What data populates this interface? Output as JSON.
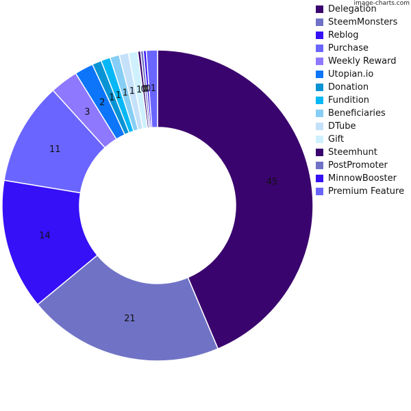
{
  "watermark": "image-charts.com",
  "colors": [
    "#3a046e",
    "#7073c5",
    "#3610f6",
    "#6a65ff",
    "#8e78fe",
    "#0c75f9",
    "#0893d4",
    "#06b7f6",
    "#86cef5",
    "#c5e1f9",
    "#cff1ff",
    "#3a046e",
    "#7073c5",
    "#3610f6",
    "#6a65ff"
  ],
  "chart_data": {
    "type": "pie",
    "subtype": "doughnut",
    "title": "",
    "legend_position": "right",
    "categories": [
      "Delegation",
      "SteemMonsters",
      "Reblog",
      "Purchase",
      "Weekly Reward",
      "Utopian.io",
      "Donation",
      "Fundition",
      "Beneficiaries",
      "DTube",
      "Gift",
      "Steemhunt",
      "PostPromoter",
      "MinnowBooster",
      "Premium Feature"
    ],
    "values": [
      45,
      21,
      14,
      11,
      3,
      2,
      1,
      1,
      1,
      1,
      1,
      0.3,
      0.3,
      0.3,
      1.2
    ],
    "labels": [
      "45",
      "21",
      "14",
      "11",
      "3",
      "2",
      "1",
      "1",
      "1",
      "1",
      "1",
      "0",
      "0",
      "0",
      "1"
    ]
  }
}
